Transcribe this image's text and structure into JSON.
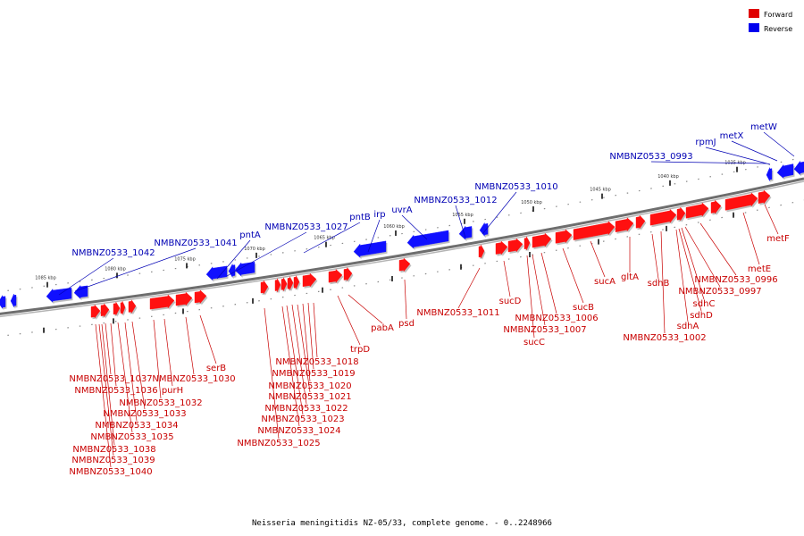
{
  "caption": "Neisseria meningitidis NZ-05/33, complete genome. - 0..2248966",
  "legend": [
    {
      "label": "Forward",
      "color": "#e00000"
    },
    {
      "label": "Reverse",
      "color": "#0000ee"
    }
  ],
  "colors": {
    "forward": "#ff1010",
    "reverse": "#1010ff",
    "forward_label": "#c80000",
    "reverse_label": "#0000b4",
    "backbone": "#777777"
  },
  "ticks": [
    "1035 kbp",
    "1040 kbp",
    "1045 kbp",
    "1050 kbp",
    "1055 kbp",
    "1060 kbp",
    "1065 kbp",
    "1070 kbp",
    "1075 kbp",
    "1080 kbp",
    "1085 kbp"
  ],
  "reverse_labels": [
    "metW",
    "metX",
    "rpmJ",
    "NMBNZ0533_0993",
    "NMBNZ0533_1010",
    "NMBNZ0533_1012",
    "uvrA",
    "irp",
    "pntB",
    "NMBNZ0533_1027",
    "pntA",
    "NMBNZ0533_1041",
    "NMBNZ0533_1042"
  ],
  "forward_labels": [
    "metF",
    "metE",
    "NMBNZ0533_0996",
    "NMBNZ0533_0997",
    "sdhC",
    "sdhD",
    "sdhA",
    "sdhB",
    "NMBNZ0533_1002",
    "gltA",
    "sucA",
    "sucB",
    "NMBNZ0533_1006",
    "NMBNZ0533_1007",
    "sucC",
    "sucD",
    "NMBNZ0533_1011",
    "psd",
    "pabA",
    "trpD",
    "NMBNZ0533_1018",
    "NMBNZ0533_1019",
    "NMBNZ0533_1020",
    "NMBNZ0533_1021",
    "NMBNZ0533_1022",
    "NMBNZ0533_1023",
    "NMBNZ0533_1024",
    "NMBNZ0533_1025",
    "serB",
    "NMBNZ0533_1030",
    "purH",
    "NMBNZ0533_1032",
    "NMBNZ0533_1033",
    "NMBNZ0533_1034",
    "NMBNZ0533_1035",
    "NMBNZ0533_1036",
    "NMBNZ0533_1037",
    "NMBNZ0533_1038",
    "NMBNZ0533_1039",
    "NMBNZ0533_1040"
  ]
}
